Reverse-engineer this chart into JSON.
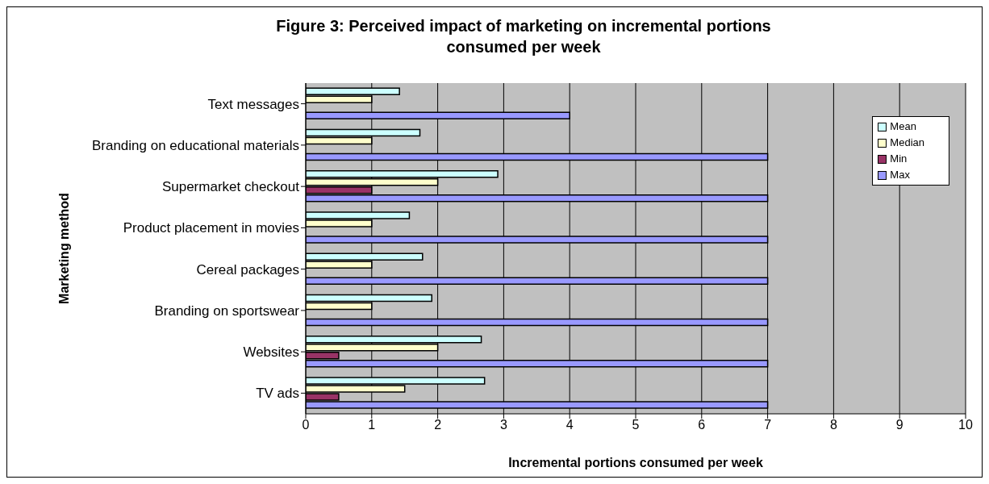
{
  "chart_data": {
    "type": "bar",
    "orientation": "horizontal",
    "title": "Figure 3: Perceived impact of marketing on incremental portions consumed per week",
    "xlabel": "Incremental portions consumed per week",
    "ylabel": "Marketing method",
    "categories": [
      "Text messages",
      "Branding on educational materials",
      "Supermarket checkout",
      "Product placement in movies",
      "Cereal packages",
      "Branding on sportswear",
      "Websites",
      "TV ads"
    ],
    "series": [
      {
        "name": "Mean",
        "color": "#ccffff",
        "values": [
          1.42,
          1.73,
          2.91,
          1.57,
          1.77,
          1.91,
          2.66,
          2.71
        ]
      },
      {
        "name": "Median",
        "color": "#ffffcc",
        "values": [
          1,
          1,
          2,
          1,
          1,
          1,
          2,
          1.5
        ]
      },
      {
        "name": "Min",
        "color": "#993366",
        "values": [
          0,
          0,
          1,
          0,
          0,
          0,
          0.5,
          0.5
        ]
      },
      {
        "name": "Max",
        "color": "#9999ff",
        "values": [
          4,
          7,
          7,
          7,
          7,
          7,
          7,
          7
        ]
      }
    ],
    "xlim": [
      0,
      10
    ],
    "xticks": [
      0,
      1,
      2,
      3,
      4,
      5,
      6,
      7,
      8,
      9,
      10
    ],
    "grid": "x",
    "legend": "top right"
  }
}
